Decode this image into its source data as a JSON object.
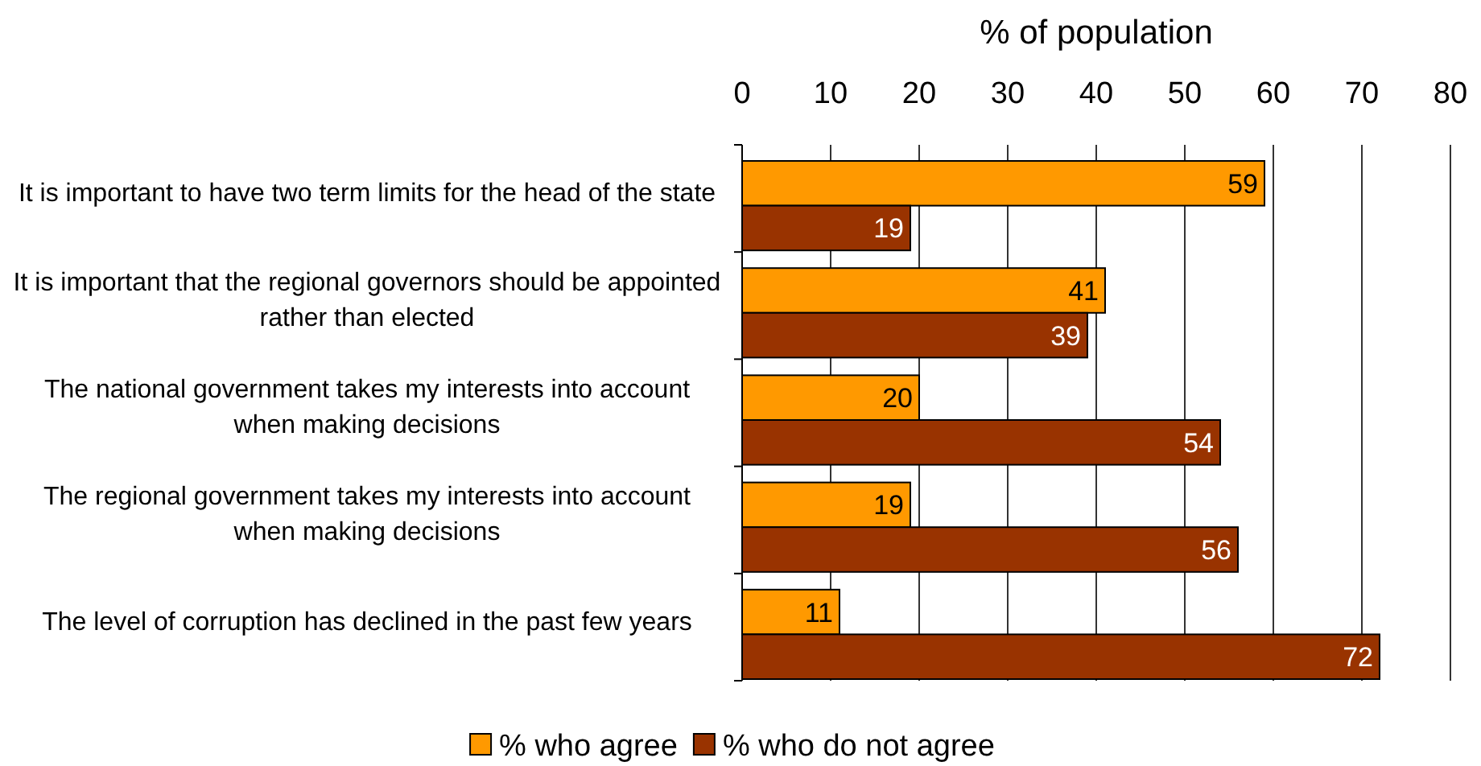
{
  "chart_data": {
    "type": "bar",
    "orientation": "horizontal",
    "xlabel": "% of population",
    "categories": [
      "It is important to have two term limits for the head of the state",
      "It is important that the regional governors should be appointed rather than elected",
      "The national government takes my interests into account when making decisions",
      "The regional government takes my interests into account when making decisions",
      "The level of corruption has declined in the past few years"
    ],
    "series": [
      {
        "name": "% who agree",
        "color": "#ff9900",
        "values": [
          59,
          41,
          20,
          19,
          11
        ]
      },
      {
        "name": "% who do not agree",
        "color": "#993300",
        "values": [
          19,
          39,
          54,
          56,
          72
        ]
      }
    ],
    "xlim": [
      0,
      80
    ],
    "xticks": [
      0,
      10,
      20,
      30,
      40,
      50,
      60,
      70,
      80
    ],
    "grid": "x",
    "data_labels": true,
    "legend": "bottom"
  }
}
